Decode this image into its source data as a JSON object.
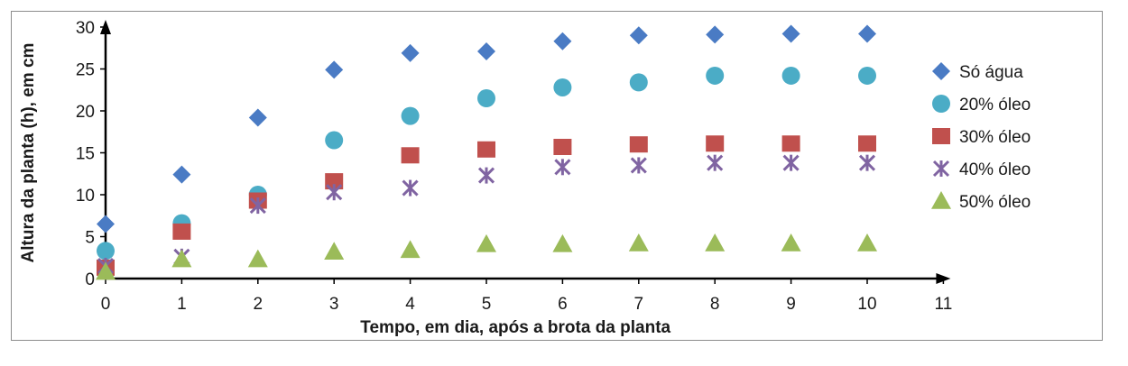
{
  "chart_data": {
    "type": "scatter",
    "title": "",
    "xlabel": "Tempo, em dia, após a brota da planta",
    "ylabel": "Altura da planta (h), em cm",
    "xlim": [
      0,
      11
    ],
    "ylim": [
      0,
      30
    ],
    "xticks": [
      0,
      1,
      2,
      3,
      4,
      5,
      6,
      7,
      8,
      9,
      10,
      11
    ],
    "yticks": [
      0,
      5,
      10,
      15,
      20,
      25,
      30
    ],
    "grid": false,
    "legend_position": "right",
    "x": [
      0,
      1,
      2,
      3,
      4,
      5,
      6,
      7,
      8,
      9,
      10
    ],
    "series": [
      {
        "name": "Só água",
        "marker": "diamond",
        "color": "#4a7bc4",
        "values": [
          6.5,
          12.4,
          19.2,
          24.9,
          26.9,
          27.1,
          28.3,
          29.0,
          29.1,
          29.2,
          29.2
        ]
      },
      {
        "name": "20% óleo",
        "marker": "circle",
        "color": "#4bacc6",
        "values": [
          3.3,
          6.6,
          10.0,
          16.5,
          19.4,
          21.5,
          22.8,
          23.4,
          24.2,
          24.2,
          24.2
        ]
      },
      {
        "name": "30% óleo",
        "marker": "square",
        "color": "#c0504d",
        "values": [
          1.3,
          5.6,
          9.3,
          11.6,
          14.7,
          15.4,
          15.7,
          16.0,
          16.1,
          16.1,
          16.1
        ]
      },
      {
        "name": "40% óleo",
        "marker": "asterisk",
        "color": "#8064a2",
        "values": [
          1.5,
          2.6,
          8.7,
          10.3,
          10.8,
          12.3,
          13.3,
          13.5,
          13.8,
          13.8,
          13.8
        ]
      },
      {
        "name": "50% óleo",
        "marker": "triangle",
        "color": "#9bbb59",
        "values": [
          0.8,
          2.3,
          2.3,
          3.2,
          3.4,
          4.1,
          4.1,
          4.2,
          4.2,
          4.2,
          4.2
        ]
      }
    ]
  }
}
